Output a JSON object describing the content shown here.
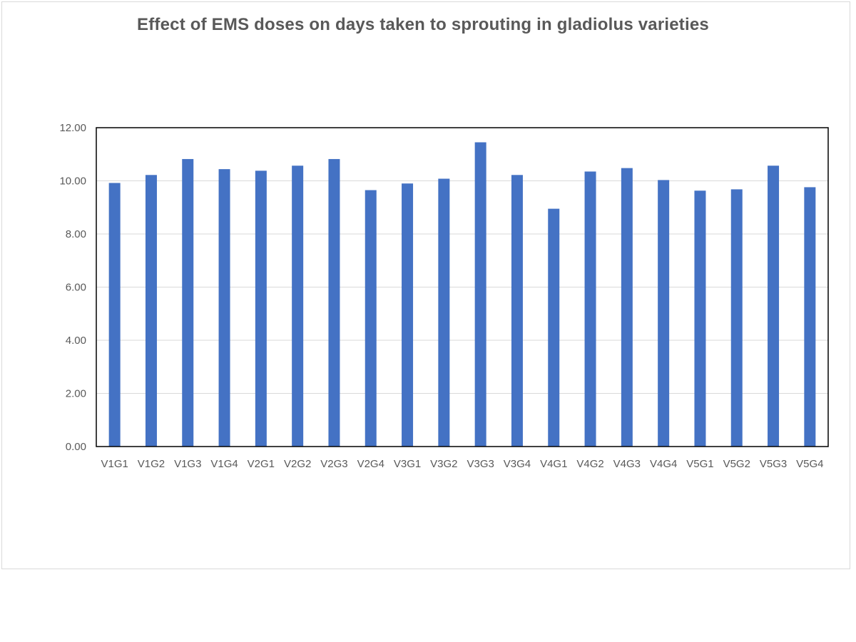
{
  "chart_data": {
    "type": "bar",
    "title": "Effect of EMS doses on days taken to sprouting in gladiolus varieties",
    "xlabel": "",
    "ylabel": "",
    "categories": [
      "V1G1",
      "V1G2",
      "V1G3",
      "V1G4",
      "V2G1",
      "V2G2",
      "V2G3",
      "V2G4",
      "V3G1",
      "V3G2",
      "V3G3",
      "V3G4",
      "V4G1",
      "V4G2",
      "V4G3",
      "V4G4",
      "V5G1",
      "V5G2",
      "V5G3",
      "V5G4"
    ],
    "values": [
      9.92,
      10.22,
      10.82,
      10.44,
      10.38,
      10.57,
      10.82,
      9.65,
      9.9,
      10.08,
      11.45,
      10.22,
      8.95,
      10.35,
      10.48,
      10.03,
      9.63,
      9.68,
      10.57,
      9.76
    ],
    "ylim": [
      0,
      12
    ],
    "yticks": [
      "0.00",
      "2.00",
      "4.00",
      "6.00",
      "8.00",
      "10.00",
      "12.00"
    ],
    "ytick_values": [
      0,
      2,
      4,
      6,
      8,
      10,
      12
    ],
    "grid": true,
    "legend": "none",
    "bar_color": "#4472c4",
    "gridline_color": "#d9d9d9",
    "plot_border_color": "#000000"
  }
}
